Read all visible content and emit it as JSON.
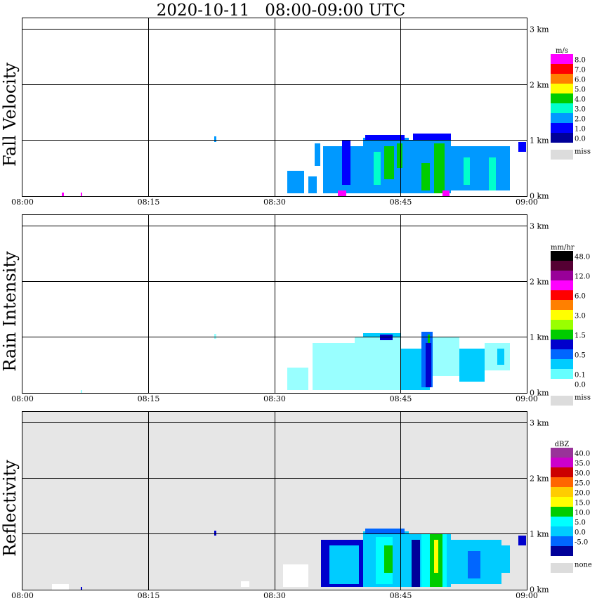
{
  "chart_data": [
    {
      "type": "heatmap",
      "title": "2020-10-11   08:00-09:00 UTC",
      "ylabel": "Fall Velocity",
      "unit": "m/s",
      "filled_background": false,
      "xticks": [
        "08:00",
        "08:15",
        "08:30",
        "08:45",
        "09:00"
      ],
      "yticks": [
        "0 km",
        "1 km",
        "2 km",
        "3 km"
      ],
      "ylim": [
        0,
        3.2
      ],
      "xlim_minutes": [
        0,
        60
      ],
      "legend": [
        {
          "label": "8.0",
          "color": "#ff00ff"
        },
        {
          "label": "7.0",
          "color": "#ff0000"
        },
        {
          "label": "6.0",
          "color": "#ff8000"
        },
        {
          "label": "5.0",
          "color": "#ffff00"
        },
        {
          "label": "4.0",
          "color": "#00cc00"
        },
        {
          "label": "3.0",
          "color": "#00ffcc"
        },
        {
          "label": "2.0",
          "color": "#0099ff"
        },
        {
          "label": "1.0",
          "color": "#0000ff"
        },
        {
          "label": "0.0",
          "color": "#000099"
        }
      ],
      "miss_label": "miss",
      "miss_color": "#dcdcdc",
      "data_cells": [
        {
          "t0": 31.5,
          "t1": 33.5,
          "h0": 0.05,
          "h1": 0.45,
          "color": "#0099ff"
        },
        {
          "t0": 34.0,
          "t1": 35.0,
          "h0": 0.05,
          "h1": 0.35,
          "color": "#0099ff"
        },
        {
          "t0": 34.8,
          "t1": 35.4,
          "h0": 0.55,
          "h1": 0.95,
          "color": "#0099ff"
        },
        {
          "t0": 35.8,
          "t1": 40.5,
          "h0": 0.05,
          "h1": 0.9,
          "color": "#0099ff"
        },
        {
          "t0": 37.5,
          "t1": 38.5,
          "h0": 0.0,
          "h1": 0.1,
          "color": "#ff00ff"
        },
        {
          "t0": 38.0,
          "t1": 39.0,
          "h0": 0.2,
          "h1": 1.0,
          "color": "#0000ff"
        },
        {
          "t0": 40.5,
          "t1": 46.0,
          "h0": 0.05,
          "h1": 1.05,
          "color": "#0099ff"
        },
        {
          "t0": 40.8,
          "t1": 45.5,
          "h0": 1.0,
          "h1": 1.1,
          "color": "#0000ff"
        },
        {
          "t0": 43.0,
          "t1": 44.2,
          "h0": 0.3,
          "h1": 0.9,
          "color": "#00cc00"
        },
        {
          "t0": 44.5,
          "t1": 45.2,
          "h0": 0.5,
          "h1": 0.95,
          "color": "#00cc00"
        },
        {
          "t0": 41.8,
          "t1": 42.6,
          "h0": 0.2,
          "h1": 0.8,
          "color": "#00ffcc"
        },
        {
          "t0": 46.0,
          "t1": 51.0,
          "h0": 0.05,
          "h1": 1.0,
          "color": "#0099ff"
        },
        {
          "t0": 46.5,
          "t1": 51.0,
          "h0": 1.0,
          "h1": 1.12,
          "color": "#0000ff"
        },
        {
          "t0": 47.5,
          "t1": 48.5,
          "h0": 0.1,
          "h1": 0.6,
          "color": "#00cc00"
        },
        {
          "t0": 49.0,
          "t1": 50.2,
          "h0": 0.05,
          "h1": 0.95,
          "color": "#00cc00"
        },
        {
          "t0": 50.0,
          "t1": 50.8,
          "h0": 0.0,
          "h1": 0.1,
          "color": "#ff00ff"
        },
        {
          "t0": 51.0,
          "t1": 58.0,
          "h0": 0.1,
          "h1": 0.9,
          "color": "#0099ff"
        },
        {
          "t0": 52.5,
          "t1": 53.2,
          "h0": 0.2,
          "h1": 0.7,
          "color": "#00ffcc"
        },
        {
          "t0": 55.5,
          "t1": 56.3,
          "h0": 0.1,
          "h1": 0.7,
          "color": "#00ffcc"
        },
        {
          "t0": 59.0,
          "t1": 59.9,
          "h0": 0.8,
          "h1": 0.98,
          "color": "#0000ff"
        },
        {
          "t0": 22.8,
          "t1": 23.1,
          "h0": 0.98,
          "h1": 1.08,
          "color": "#0099ff"
        },
        {
          "t0": 4.7,
          "t1": 4.9,
          "h0": 0.0,
          "h1": 0.06,
          "color": "#ff00ff"
        },
        {
          "t0": 6.9,
          "t1": 7.1,
          "h0": 0.0,
          "h1": 0.06,
          "color": "#ff00ff"
        }
      ]
    },
    {
      "type": "heatmap",
      "ylabel": "Rain Intensity",
      "unit": "mm/hr",
      "filled_background": false,
      "xticks": [
        "08:00",
        "08:15",
        "08:30",
        "08:45",
        "09:00"
      ],
      "yticks": [
        "0 km",
        "1 km",
        "2 km",
        "3 km"
      ],
      "ylim": [
        0,
        3.2
      ],
      "xlim_minutes": [
        0,
        60
      ],
      "legend": [
        {
          "label": "48.0",
          "color": "#000000"
        },
        {
          "label": "",
          "color": "#550033"
        },
        {
          "label": "12.0",
          "color": "#990099"
        },
        {
          "label": "",
          "color": "#ff00ff"
        },
        {
          "label": "6.0",
          "color": "#ff0000"
        },
        {
          "label": "",
          "color": "#ff8000"
        },
        {
          "label": "3.0",
          "color": "#ffff00"
        },
        {
          "label": "",
          "color": "#99ff00"
        },
        {
          "label": "1.5",
          "color": "#00cc00"
        },
        {
          "label": "",
          "color": "#0000cc"
        },
        {
          "label": "0.5",
          "color": "#0066ff"
        },
        {
          "label": "",
          "color": "#00ccff"
        },
        {
          "label": "0.1",
          "color": "#66ffff"
        },
        {
          "label": "0.0",
          "color": "#ffffff"
        }
      ],
      "miss_label": "miss",
      "miss_color": "#dcdcdc",
      "data_cells": [
        {
          "t0": 31.5,
          "t1": 34.0,
          "h0": 0.05,
          "h1": 0.45,
          "color": "#99ffff"
        },
        {
          "t0": 34.5,
          "t1": 39.5,
          "h0": 0.05,
          "h1": 0.9,
          "color": "#99ffff"
        },
        {
          "t0": 39.5,
          "t1": 45.0,
          "h0": 0.05,
          "h1": 1.0,
          "color": "#99ffff"
        },
        {
          "t0": 40.5,
          "t1": 45.0,
          "h0": 1.0,
          "h1": 1.08,
          "color": "#00ccff"
        },
        {
          "t0": 42.5,
          "t1": 44.0,
          "h0": 0.95,
          "h1": 1.05,
          "color": "#0000cc"
        },
        {
          "t0": 45.0,
          "t1": 48.5,
          "h0": 0.05,
          "h1": 0.8,
          "color": "#00ccff"
        },
        {
          "t0": 47.5,
          "t1": 48.8,
          "h0": 0.1,
          "h1": 1.1,
          "color": "#0066ff"
        },
        {
          "t0": 48.0,
          "t1": 48.6,
          "h0": 0.1,
          "h1": 0.9,
          "color": "#0000cc"
        },
        {
          "t0": 48.2,
          "t1": 48.5,
          "h0": 0.9,
          "h1": 1.05,
          "color": "#00cc00"
        },
        {
          "t0": 48.8,
          "t1": 52.0,
          "h0": 0.3,
          "h1": 1.0,
          "color": "#99ffff"
        },
        {
          "t0": 52.0,
          "t1": 55.0,
          "h0": 0.2,
          "h1": 0.8,
          "color": "#00ccff"
        },
        {
          "t0": 55.0,
          "t1": 58.0,
          "h0": 0.4,
          "h1": 0.9,
          "color": "#99ffff"
        },
        {
          "t0": 56.5,
          "t1": 57.3,
          "h0": 0.5,
          "h1": 0.8,
          "color": "#00ccff"
        },
        {
          "t0": 22.8,
          "t1": 23.1,
          "h0": 0.98,
          "h1": 1.06,
          "color": "#99ffff"
        },
        {
          "t0": 6.9,
          "t1": 7.1,
          "h0": 0.0,
          "h1": 0.05,
          "color": "#99ffff"
        }
      ]
    },
    {
      "type": "heatmap",
      "ylabel": "Reflectivity",
      "unit": "dBZ",
      "filled_background": true,
      "xticks": [
        "08:00",
        "08:15",
        "08:30",
        "08:45",
        "09:00"
      ],
      "yticks": [
        "0 km",
        "1 km",
        "2 km",
        "3 km"
      ],
      "ylim": [
        0,
        3.2
      ],
      "xlim_minutes": [
        0,
        60
      ],
      "legend": [
        {
          "label": "40.0",
          "color": "#993399"
        },
        {
          "label": "35.0",
          "color": "#cc00cc"
        },
        {
          "label": "30.0",
          "color": "#cc0000"
        },
        {
          "label": "25.0",
          "color": "#ff6600"
        },
        {
          "label": "20.0",
          "color": "#ffcc00"
        },
        {
          "label": "15.0",
          "color": "#ffff00"
        },
        {
          "label": "10.0",
          "color": "#00cc00"
        },
        {
          "label": "5.0",
          "color": "#00ffff"
        },
        {
          "label": "0.0",
          "color": "#00ccff"
        },
        {
          "label": "-5.0",
          "color": "#0066ff"
        },
        {
          "label": "",
          "color": "#000099"
        }
      ],
      "miss_label": "none",
      "miss_color": "#dcdcdc",
      "data_cells": [
        {
          "t0": 31.0,
          "t1": 34.0,
          "h0": 0.05,
          "h1": 0.45,
          "color": "#ffffff"
        },
        {
          "t0": 26.0,
          "t1": 27.0,
          "h0": 0.05,
          "h1": 0.15,
          "color": "#ffffff"
        },
        {
          "t0": 3.5,
          "t1": 5.5,
          "h0": 0.0,
          "h1": 0.1,
          "color": "#ffffff"
        },
        {
          "t0": 35.5,
          "t1": 40.5,
          "h0": 0.05,
          "h1": 0.9,
          "color": "#0000cc"
        },
        {
          "t0": 36.5,
          "t1": 40.0,
          "h0": 0.1,
          "h1": 0.8,
          "color": "#00ccff"
        },
        {
          "t0": 40.5,
          "t1": 46.0,
          "h0": 0.05,
          "h1": 1.05,
          "color": "#00ccff"
        },
        {
          "t0": 40.8,
          "t1": 45.5,
          "h0": 1.0,
          "h1": 1.1,
          "color": "#0066ff"
        },
        {
          "t0": 42.0,
          "t1": 44.0,
          "h0": 0.1,
          "h1": 0.95,
          "color": "#00ffff"
        },
        {
          "t0": 43.0,
          "t1": 44.0,
          "h0": 0.3,
          "h1": 0.8,
          "color": "#00cc00"
        },
        {
          "t0": 46.0,
          "t1": 51.0,
          "h0": 0.05,
          "h1": 1.0,
          "color": "#00ccff"
        },
        {
          "t0": 46.3,
          "t1": 47.3,
          "h0": 0.05,
          "h1": 0.9,
          "color": "#000099"
        },
        {
          "t0": 47.5,
          "t1": 50.5,
          "h0": 0.05,
          "h1": 1.0,
          "color": "#00ffff"
        },
        {
          "t0": 48.5,
          "t1": 50.0,
          "h0": 0.05,
          "h1": 1.0,
          "color": "#00cc00"
        },
        {
          "t0": 49.0,
          "t1": 49.5,
          "h0": 0.3,
          "h1": 0.9,
          "color": "#ffff00"
        },
        {
          "t0": 51.0,
          "t1": 57.0,
          "h0": 0.1,
          "h1": 0.9,
          "color": "#00ccff"
        },
        {
          "t0": 53.0,
          "t1": 54.5,
          "h0": 0.2,
          "h1": 0.7,
          "color": "#0066ff"
        },
        {
          "t0": 57.0,
          "t1": 58.0,
          "h0": 0.3,
          "h1": 0.8,
          "color": "#00ccff"
        },
        {
          "t0": 59.0,
          "t1": 59.9,
          "h0": 0.8,
          "h1": 0.98,
          "color": "#0000cc"
        },
        {
          "t0": 22.8,
          "t1": 23.1,
          "h0": 0.98,
          "h1": 1.06,
          "color": "#0000cc"
        },
        {
          "t0": 6.9,
          "t1": 7.1,
          "h0": 0.0,
          "h1": 0.05,
          "color": "#0000cc"
        }
      ]
    }
  ]
}
